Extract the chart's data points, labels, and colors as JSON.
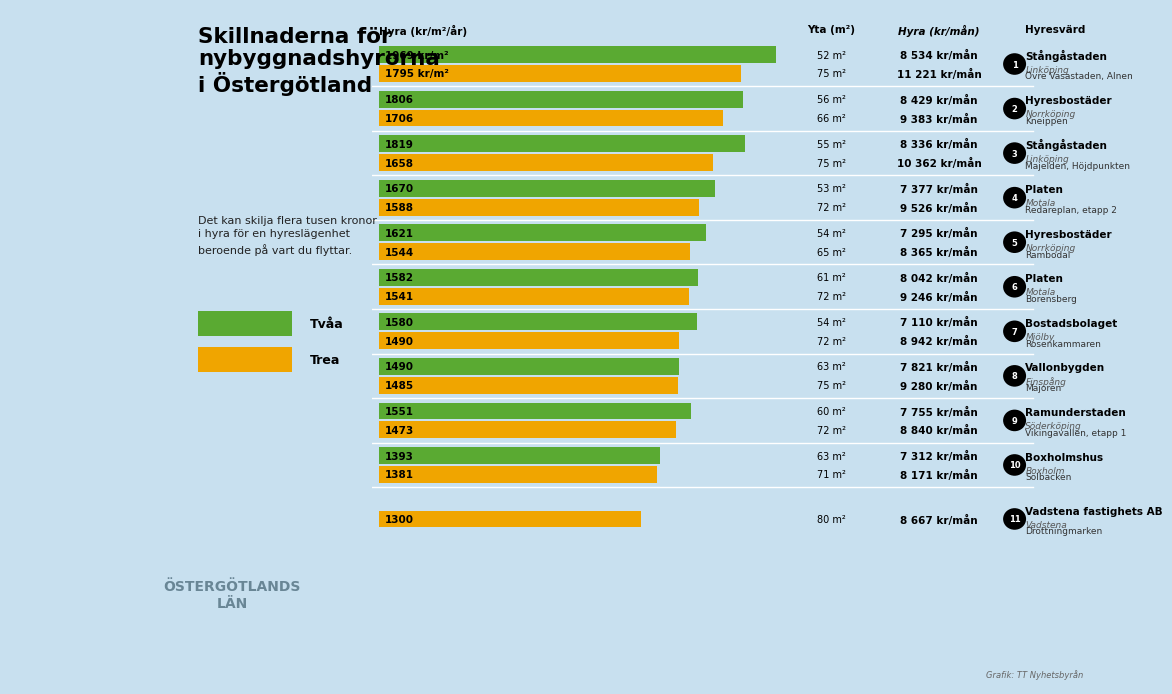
{
  "title": "Skillnaderna för\nnybyggnadshyrorna\ni Östergötland",
  "subtitle": "Det kan skilja flera tusen kronor\ni hyra för en hyreslägenhet\nberoende på vart du flyttar.",
  "color_two": "#5aaa32",
  "color_three": "#f0a500",
  "background_color": "#c8e0ef",
  "header_hyra": "Hyra (kr/m²/år)",
  "header_yta": "Yta (m²)",
  "header_hyra_man": "Hyra (kr/mån)",
  "header_hyresvard": "Hyresvärd",
  "entries": [
    {
      "num": 1,
      "two_rate": 1969,
      "two_rate_label": "1969 kr/m²",
      "two_area": 52,
      "two_monthly": "8 534 kr/mån",
      "three_rate": 1795,
      "three_rate_label": "1795 kr/m²",
      "three_area": 75,
      "three_monthly": "11 221 kr/mån",
      "landlord": "Stångåstaden",
      "city": "Linköping",
      "location": "Övre Vasastaden, Alnen"
    },
    {
      "num": 2,
      "two_rate": 1806,
      "two_rate_label": "1806",
      "two_area": 56,
      "two_monthly": "8 429 kr/mån",
      "three_rate": 1706,
      "three_rate_label": "1706",
      "three_area": 66,
      "three_monthly": "9 383 kr/mån",
      "landlord": "Hyresbostäder",
      "city": "Norrköping",
      "location": "Kneippen"
    },
    {
      "num": 3,
      "two_rate": 1819,
      "two_rate_label": "1819",
      "two_area": 55,
      "two_monthly": "8 336 kr/mån",
      "three_rate": 1658,
      "three_rate_label": "1658",
      "three_area": 75,
      "three_monthly": "10 362 kr/mån",
      "landlord": "Stångåstaden",
      "city": "Linköping",
      "location": "Majelden, Höjdpunkten"
    },
    {
      "num": 4,
      "two_rate": 1670,
      "two_rate_label": "1670",
      "two_area": 53,
      "two_monthly": "7 377 kr/mån",
      "three_rate": 1588,
      "three_rate_label": "1588",
      "three_area": 72,
      "three_monthly": "9 526 kr/mån",
      "landlord": "Platen",
      "city": "Motala",
      "location": "Redareplan, etapp 2"
    },
    {
      "num": 5,
      "two_rate": 1621,
      "two_rate_label": "1621",
      "two_area": 54,
      "two_monthly": "7 295 kr/mån",
      "three_rate": 1544,
      "three_rate_label": "1544",
      "three_area": 65,
      "three_monthly": "8 365 kr/mån",
      "landlord": "Hyresbostäder",
      "city": "Norrköping",
      "location": "Rambodal"
    },
    {
      "num": 6,
      "two_rate": 1582,
      "two_rate_label": "1582",
      "two_area": 61,
      "two_monthly": "8 042 kr/mån",
      "three_rate": 1541,
      "three_rate_label": "1541",
      "three_area": 72,
      "three_monthly": "9 246 kr/mån",
      "landlord": "Platen",
      "city": "Motala",
      "location": "Borensberg"
    },
    {
      "num": 7,
      "two_rate": 1580,
      "two_rate_label": "1580",
      "two_area": 54,
      "two_monthly": "7 110 kr/mån",
      "three_rate": 1490,
      "three_rate_label": "1490",
      "three_area": 72,
      "three_monthly": "8 942 kr/mån",
      "landlord": "Bostadsbolaget",
      "city": "Mjölby",
      "location": "Rosenkammaren"
    },
    {
      "num": 8,
      "two_rate": 1490,
      "two_rate_label": "1490",
      "two_area": 63,
      "two_monthly": "7 821 kr/mån",
      "three_rate": 1485,
      "three_rate_label": "1485",
      "three_area": 75,
      "three_monthly": "9 280 kr/mån",
      "landlord": "Vallonbygden",
      "city": "Finspång",
      "location": "Majoren"
    },
    {
      "num": 9,
      "two_rate": 1551,
      "two_rate_label": "1551",
      "two_area": 60,
      "two_monthly": "7 755 kr/mån",
      "three_rate": 1473,
      "three_rate_label": "1473",
      "three_area": 72,
      "three_monthly": "8 840 kr/mån",
      "landlord": "Ramunderstaden",
      "city": "Söderköping",
      "location": "Vikingavallen, etapp 1"
    },
    {
      "num": 10,
      "two_rate": 1393,
      "two_rate_label": "1393",
      "two_area": 63,
      "two_monthly": "7 312 kr/mån",
      "three_rate": 1381,
      "three_rate_label": "1381",
      "three_area": 71,
      "three_monthly": "8 171 kr/mån",
      "landlord": "Boxholmshus",
      "city": "Boxholm",
      "location": "Solbacken"
    },
    {
      "num": 11,
      "two_rate": null,
      "two_rate_label": null,
      "two_area": null,
      "two_monthly": null,
      "three_rate": 1300,
      "three_rate_label": "1300",
      "three_area": 80,
      "three_monthly": "8 667 kr/mån",
      "landlord": "Vadstena fastighets AB",
      "city": "Vadstena",
      "location": "Drottningmarken"
    }
  ],
  "max_rate": 2050,
  "footnote": "Grafik: TT Nyhetsbyrån"
}
